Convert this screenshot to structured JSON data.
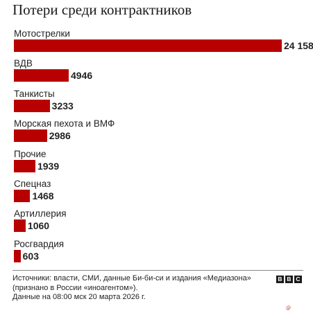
{
  "header": {
    "title": "Потери среди контрактников"
  },
  "chart_data": {
    "type": "bar",
    "orientation": "horizontal",
    "title": "Потери среди контрактников",
    "categories": [
      "Мотострелки",
      "ВДВ",
      "Танкисты",
      "Морская пехота и ВМФ",
      "Прочие",
      "Спецназ",
      "Артиллерия",
      "Росгвардия"
    ],
    "values": [
      24158,
      4946,
      3233,
      2986,
      1939,
      1468,
      1060,
      603
    ],
    "value_labels": [
      "24 158",
      "4946",
      "3233",
      "2986",
      "1939",
      "1468",
      "1060",
      "603"
    ],
    "bar_color": "#b80000",
    "grid": false,
    "legend": "none"
  },
  "footer": {
    "sources_line1": "Источники: власти, СМИ, данные Би-би-си и издания «Медиазона»",
    "sources_line2": "(признано в России «иноагентом»).",
    "date_line": "Данные на 08:00 мск 20 марта 2026 г.",
    "logo": [
      "B",
      "B",
      "C"
    ]
  }
}
